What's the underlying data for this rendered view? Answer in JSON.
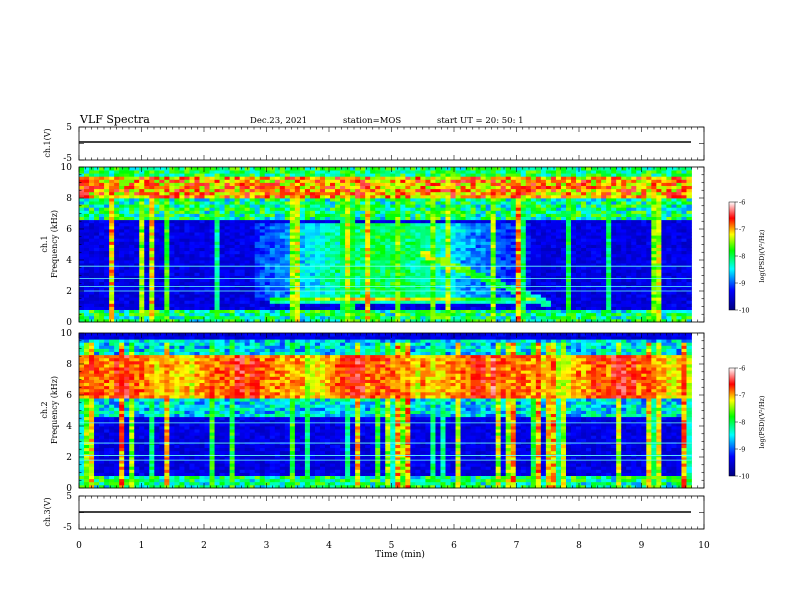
{
  "header": {
    "title": "VLF Spectra",
    "date": "Dec.23, 2021",
    "station": "station=MOS",
    "start": "start UT =   20: 50: 1"
  },
  "chart_data": {
    "type": "heatmap",
    "x": {
      "label": "Time (min)",
      "range": [
        0,
        10
      ],
      "ticks": [
        "0",
        "1",
        "2",
        "3",
        "4",
        "5",
        "6",
        "7",
        "8",
        "9",
        "10"
      ],
      "data_extent_min": 9.8
    },
    "panels": [
      {
        "id": "ch1v",
        "type": "line",
        "ylabel": "ch.1(V)",
        "yrange": [
          -5,
          5
        ],
        "ticks": [
          "5",
          "-5"
        ],
        "level": 0
      },
      {
        "id": "ch1",
        "type": "heatmap",
        "ylabel_top": "ch.1",
        "ylabel": "Frequency (kHz)",
        "yrange": [
          0,
          10
        ],
        "ticks": [
          "0",
          "2",
          "4",
          "6",
          "8",
          "10"
        ],
        "colorbar": {
          "label": "log(PSD)(V²/Hz)",
          "range": [
            -10,
            -6
          ],
          "ticks": [
            "-6",
            "-7",
            "-8",
            "-9",
            "-10"
          ]
        }
      },
      {
        "id": "ch2",
        "type": "heatmap",
        "ylabel_top": "ch.2",
        "ylabel": "Frequency (kHz)",
        "yrange": [
          0,
          10
        ],
        "ticks": [
          "0",
          "2",
          "4",
          "6",
          "8",
          "10"
        ],
        "colorbar": {
          "label": "log(PSD)(V²/Hz)",
          "range": [
            -10,
            -6
          ],
          "ticks": [
            "-6",
            "-7",
            "-8",
            "-9",
            "-10"
          ]
        }
      },
      {
        "id": "ch3v",
        "type": "line",
        "ylabel": "ch.3(V)",
        "yrange": [
          -5,
          5
        ],
        "ticks": [
          "5",
          "-5"
        ],
        "level": 0
      }
    ],
    "colormap": [
      "#00007f",
      "#0000ff",
      "#00ffff",
      "#00ff00",
      "#ffff00",
      "#ff0000",
      "#ffffff"
    ]
  }
}
